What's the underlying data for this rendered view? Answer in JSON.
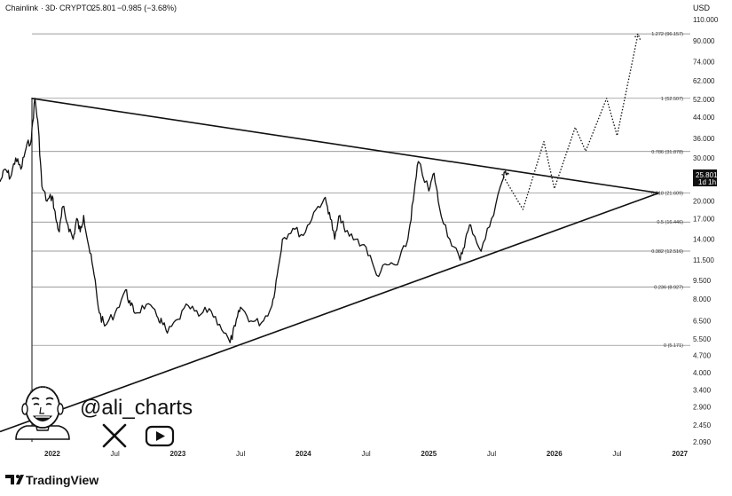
{
  "header": {
    "symbol": "Chainlink",
    "interval": "3D",
    "market": "CRYPTO",
    "last": "25.801",
    "change": "−0.985 (−3.68%)",
    "currency": "USD"
  },
  "price_badge": {
    "price": "25.801",
    "countdown": "1d 1h",
    "color": "#111111"
  },
  "branding": {
    "handle": "@ali_charts",
    "platform": "TradingView",
    "social_icons": [
      "x-logo-icon",
      "youtube-icon"
    ]
  },
  "chart_data": {
    "type": "line",
    "scale": "log",
    "series": [
      {
        "values": [
          [
            "2021-08",
            24
          ],
          [
            "2021-08",
            27
          ],
          [
            "2021-09",
            25
          ],
          [
            "2021-09",
            30
          ],
          [
            "2021-10",
            27
          ],
          [
            "2021-10",
            33
          ],
          [
            "2021-11",
            36
          ],
          [
            "2021-11",
            52.5
          ],
          [
            "2021-11",
            40
          ],
          [
            "2021-12",
            23
          ],
          [
            "2021-12",
            20
          ],
          [
            "2022-01",
            21
          ],
          [
            "2022-01",
            17
          ],
          [
            "2022-01",
            15
          ],
          [
            "2022-02",
            19
          ],
          [
            "2022-02",
            16
          ],
          [
            "2022-03",
            14
          ],
          [
            "2022-03",
            17
          ],
          [
            "2022-03",
            15
          ],
          [
            "2022-04",
            17.5
          ],
          [
            "2022-04",
            13
          ],
          [
            "2022-05",
            10
          ],
          [
            "2022-05",
            7
          ],
          [
            "2022-06",
            6.2
          ],
          [
            "2022-07",
            7
          ],
          [
            "2022-08",
            8.7
          ],
          [
            "2022-08",
            7.5
          ],
          [
            "2022-09",
            7
          ],
          [
            "2022-10",
            7.6
          ],
          [
            "2022-11",
            6.8
          ],
          [
            "2022-11",
            6.4
          ],
          [
            "2022-12",
            5.8
          ],
          [
            "2023-01",
            6.6
          ],
          [
            "2023-02",
            7.5
          ],
          [
            "2023-03",
            6.8
          ],
          [
            "2023-04",
            7.3
          ],
          [
            "2023-05",
            6.3
          ],
          [
            "2023-06",
            5.3
          ],
          [
            "2023-06",
            6.2
          ],
          [
            "2023-07",
            7.4
          ],
          [
            "2023-08",
            6.5
          ],
          [
            "2023-09",
            6.4
          ],
          [
            "2023-10",
            7.5
          ],
          [
            "2023-10",
            10
          ],
          [
            "2023-11",
            14
          ],
          [
            "2023-12",
            15.5
          ],
          [
            "2024-01",
            14.5
          ],
          [
            "2024-02",
            18
          ],
          [
            "2024-03",
            20.5
          ],
          [
            "2024-03",
            18
          ],
          [
            "2024-04",
            14
          ],
          [
            "2024-04",
            17.5
          ],
          [
            "2024-05",
            15
          ],
          [
            "2024-06",
            14
          ],
          [
            "2024-07",
            13
          ],
          [
            "2024-08",
            10
          ],
          [
            "2024-09",
            11
          ],
          [
            "2024-10",
            11
          ],
          [
            "2024-11",
            14
          ],
          [
            "2024-11",
            20
          ],
          [
            "2024-12",
            29
          ],
          [
            "2025-01",
            22
          ],
          [
            "2025-01",
            26
          ],
          [
            "2025-02",
            19
          ],
          [
            "2025-03",
            14
          ],
          [
            "2025-04",
            11.5
          ],
          [
            "2025-04",
            14
          ],
          [
            "2025-05",
            16
          ],
          [
            "2025-06",
            12.5
          ],
          [
            "2025-07",
            17
          ],
          [
            "2025-08",
            24
          ],
          [
            "2025-08",
            26.5
          ],
          [
            "2025-08",
            25.801
          ]
        ]
      },
      {
        "name": "projection",
        "style": "dotted",
        "values": [
          [
            "2025-08",
            25.801
          ],
          [
            "2025-10",
            18.5
          ],
          [
            "2025-12",
            35
          ],
          [
            "2026-01",
            22.5
          ],
          [
            "2026-03",
            40
          ],
          [
            "2026-04",
            32
          ],
          [
            "2026-06",
            52.5
          ],
          [
            "2026-07",
            37
          ],
          [
            "2026-09",
            96.157
          ]
        ]
      }
    ],
    "trendlines": [
      {
        "name": "descending-resistance",
        "from": [
          "2021-11",
          52.5
        ],
        "to": [
          "2026-11",
          21.6
        ]
      },
      {
        "name": "ascending-support",
        "from": [
          "2021-08",
          2.3
        ],
        "to": [
          "2026-11",
          21.6
        ]
      }
    ],
    "fib_levels": [
      {
        "label": "1.272 (96.157)",
        "value": 96.157
      },
      {
        "label": "1 (52.507)",
        "value": 52.507
      },
      {
        "label": "0.786 (31.878)",
        "value": 31.878
      },
      {
        "label": "0.618 (21.609)",
        "value": 21.609
      },
      {
        "label": "0.5 (16.446)",
        "value": 16.446
      },
      {
        "label": "0.382 (12.516)",
        "value": 12.516
      },
      {
        "label": "0.236 (8.927)",
        "value": 8.927
      },
      {
        "label": "0 (5.171)",
        "value": 5.171
      }
    ],
    "y_ticks": [
      "110.000",
      "90.000",
      "74.000",
      "62.000",
      "52.000",
      "44.000",
      "36.000",
      "30.000",
      "25.000",
      "20.000",
      "17.000",
      "14.000",
      "11.500",
      "9.500",
      "8.000",
      "6.500",
      "5.500",
      "4.700",
      "4.000",
      "3.400",
      "2.900",
      "2.450",
      "2.090"
    ],
    "x_ticks": [
      {
        "label": "2022",
        "date": "2022-01",
        "major": true
      },
      {
        "label": "Jul",
        "date": "2022-07",
        "major": false
      },
      {
        "label": "2023",
        "date": "2023-01",
        "major": true
      },
      {
        "label": "Jul",
        "date": "2023-07",
        "major": false
      },
      {
        "label": "2024",
        "date": "2024-01",
        "major": true
      },
      {
        "label": "Jul",
        "date": "2024-07",
        "major": false
      },
      {
        "label": "2025",
        "date": "2025-01",
        "major": true
      },
      {
        "label": "Jul",
        "date": "2025-07",
        "major": false
      },
      {
        "label": "2026",
        "date": "2026-01",
        "major": true
      },
      {
        "label": "Jul",
        "date": "2026-07",
        "major": false
      },
      {
        "label": "2027",
        "date": "2027-01",
        "major": true
      }
    ],
    "x_range": [
      "2021-08",
      "2027-02"
    ],
    "y_range": [
      2.09,
      110
    ],
    "grid": false,
    "legend": "none"
  }
}
